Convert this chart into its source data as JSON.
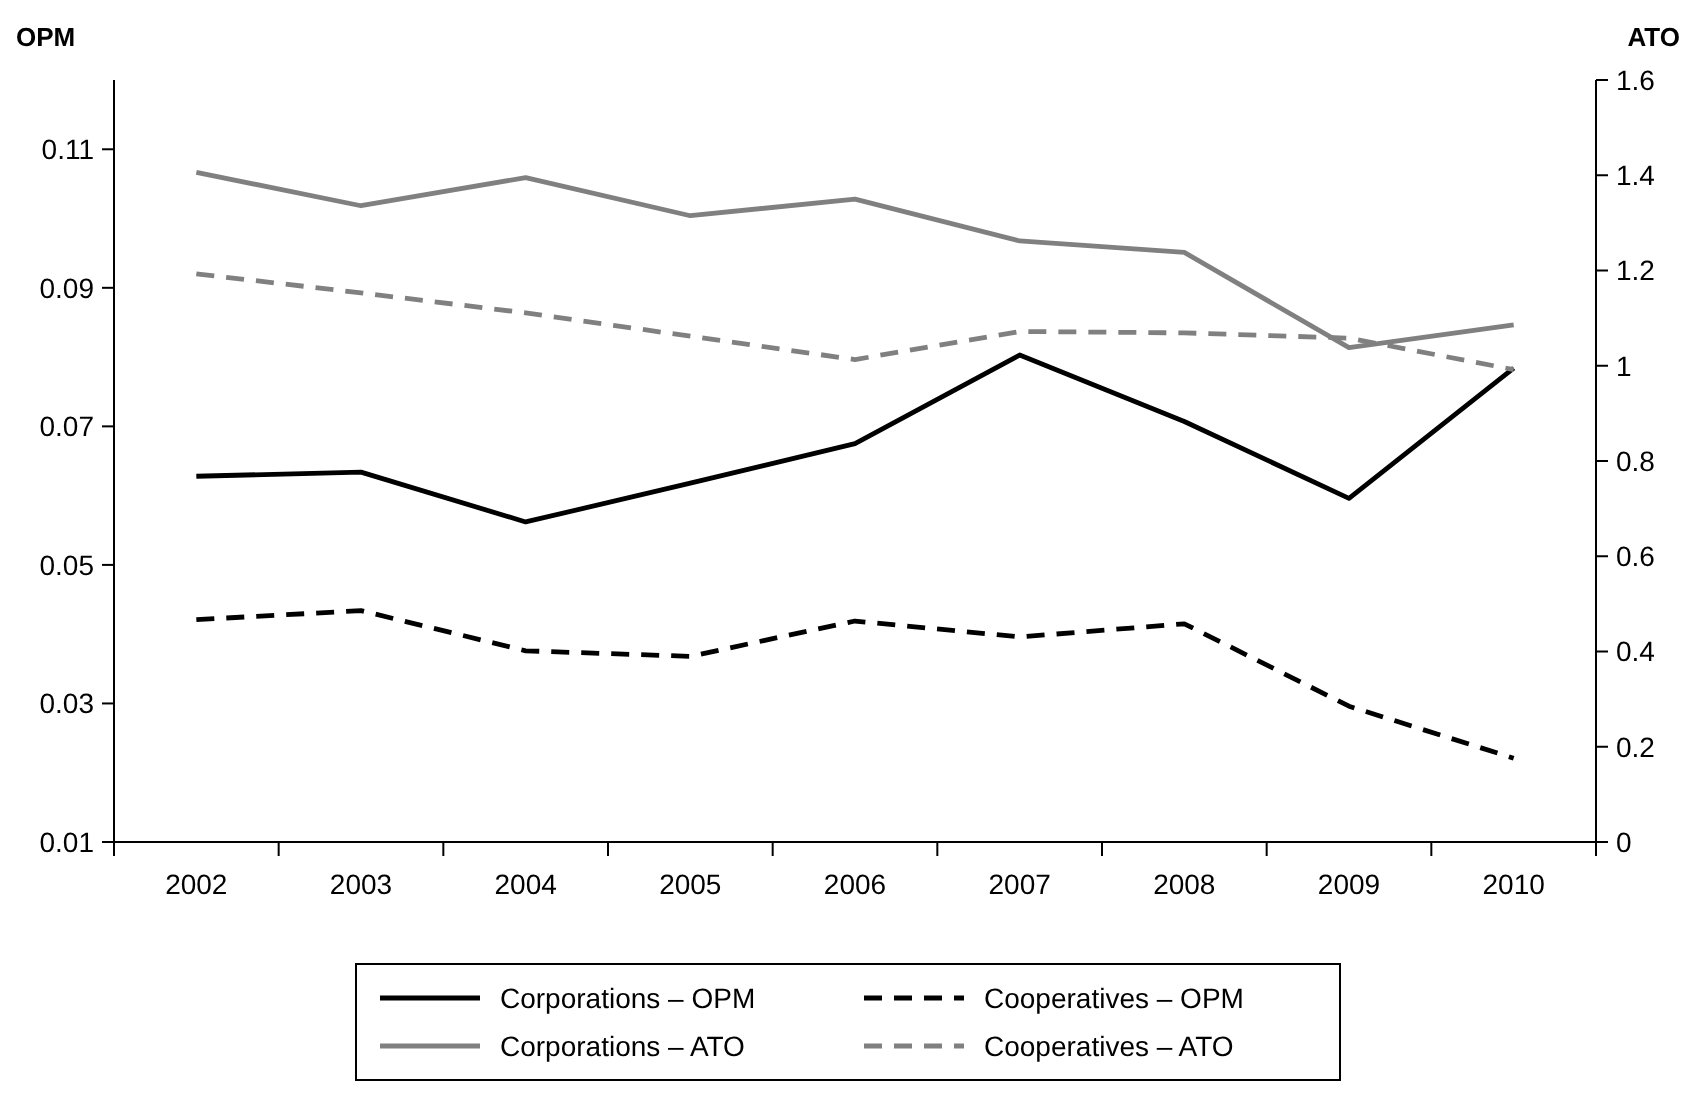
{
  "chart_data": {
    "type": "line",
    "ylabel": "OPM",
    "y2label": "ATO",
    "categories": [
      "2002",
      "2003",
      "2004",
      "2005",
      "2006",
      "2007",
      "2008",
      "2009",
      "2010"
    ],
    "ylim": [
      0.01,
      0.12
    ],
    "yticks": [
      0.01,
      0.03,
      0.05,
      0.07,
      0.09,
      0.11
    ],
    "y2lim": [
      0,
      1.6
    ],
    "y2ticks": [
      0,
      0.2,
      0.4,
      0.6,
      0.8,
      1,
      1.2,
      1.4,
      1.6
    ],
    "legend": "bottom",
    "grid": false,
    "series": [
      {
        "name": "Corporations – OPM",
        "color": "#000000",
        "line_style": "solid",
        "values": [
          0.0628,
          0.0634,
          0.0562,
          0.0618,
          0.0675,
          0.0803,
          0.0707,
          0.0596,
          0.0784
        ]
      },
      {
        "name": "Cooperatives – OPM",
        "color": "#000000",
        "line_style": "dashed",
        "values": [
          0.0421,
          0.0434,
          0.0376,
          0.0368,
          0.0419,
          0.0396,
          0.0415,
          0.0296,
          0.0221
        ]
      },
      {
        "name": "Corporations – ATO",
        "color": "#808080",
        "line_style": "solid",
        "axis": "y2",
        "values": [
          1.406,
          1.336,
          1.395,
          1.315,
          1.35,
          1.262,
          1.238,
          1.038,
          1.086
        ]
      },
      {
        "name": "Cooperatives – ATO",
        "color": "#808080",
        "line_style": "dashed",
        "axis": "y2",
        "values": [
          1.193,
          1.153,
          1.111,
          1.062,
          1.013,
          1.072,
          1.069,
          1.058,
          0.992
        ]
      }
    ]
  }
}
